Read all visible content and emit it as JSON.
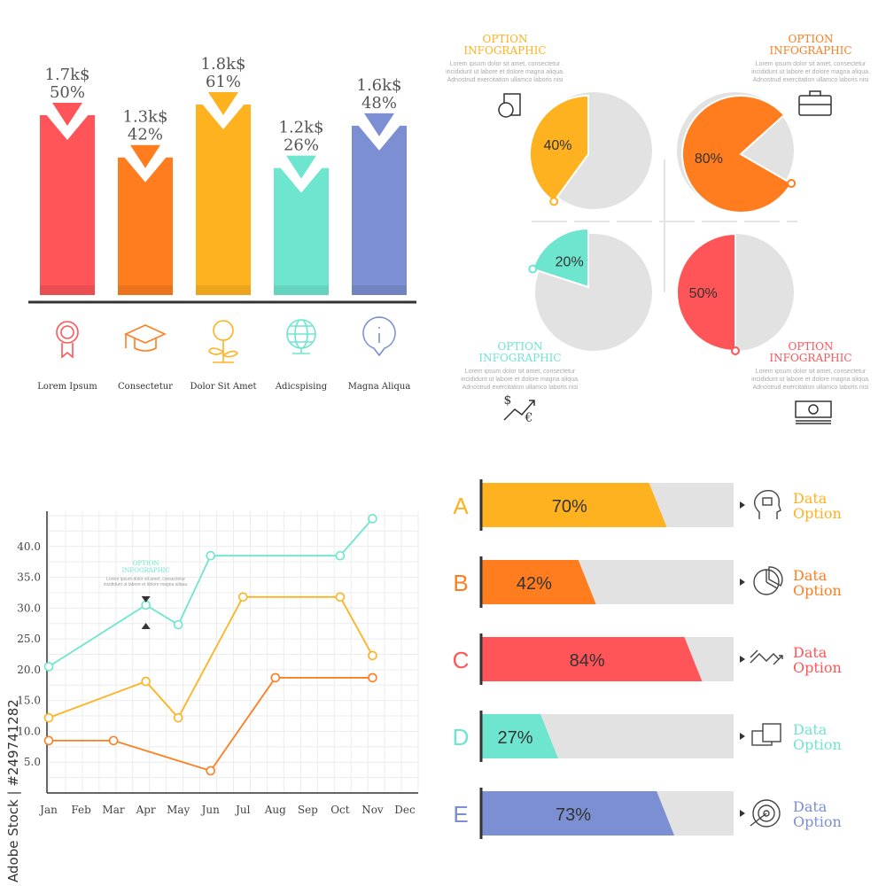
{
  "colors": {
    "red": "#ff5558",
    "orange": "#ff7d1f",
    "yellow": "#ffb21f",
    "teal": "#6ee5cf",
    "blue": "#7b8fd2",
    "grey": "#e2e2e2",
    "text": "#444444"
  },
  "watermark": "Adobe Stock | #249741282",
  "lorem": "Lorem ipsum dolor sit amet, consectetur incididunt ut labore et dolore magna aliqua. Adnostrud exercitation ullamco laboris nisi",
  "chart_data": [
    {
      "type": "bar",
      "categories": [
        "Lorem Ipsum",
        "Consectetur",
        "Dolor Sit Amet",
        "Adicspising",
        "Magna Aliqua"
      ],
      "value_labels": [
        "1.7k$",
        "1.3k$",
        "1.8k$",
        "1.2k$",
        "1.6k$"
      ],
      "percent_labels": [
        "50%",
        "42%",
        "61%",
        "26%",
        "48%"
      ],
      "values": [
        1.7,
        1.3,
        1.8,
        1.2,
        1.6
      ],
      "colors": [
        "#ff5558",
        "#ff7d1f",
        "#ffb21f",
        "#6ee5cf",
        "#7b8fd2"
      ],
      "icons": [
        "award-ribbon-icon",
        "graduation-cap-icon",
        "money-plant-icon",
        "globe-icon",
        "info-pin-icon"
      ]
    },
    {
      "type": "pie",
      "title": "OPTION INFOGRAPHIC",
      "slices": [
        {
          "label": "40%",
          "value": 40,
          "color": "#ffb21f",
          "title": "OPTION INFOGRAPHIC",
          "icon": "report-chart-icon"
        },
        {
          "label": "80%",
          "value": 80,
          "color": "#ff7d1f",
          "title": "OPTION INFOGRAPHIC",
          "icon": "briefcase-icon"
        },
        {
          "label": "20%",
          "value": 20,
          "color": "#6ee5cf",
          "title": "OPTION INFOGRAPHIC",
          "icon": "currency-exchange-icon"
        },
        {
          "label": "50%",
          "value": 50,
          "color": "#ff5558",
          "title": "OPTION INFOGRAPHIC",
          "icon": "banknote-icon"
        }
      ]
    },
    {
      "type": "line",
      "x": [
        "Jan",
        "Feb",
        "Mar",
        "Apr",
        "May",
        "Jun",
        "Jul",
        "Aug",
        "Sep",
        "Oct",
        "Nov",
        "Dec"
      ],
      "yticks": [
        "5.0",
        "10.0",
        "15.0",
        "20.0",
        "25.0",
        "30.0",
        "35.0",
        "40.0"
      ],
      "ylim": [
        0,
        45
      ],
      "annotation": {
        "title": "OPTION INFOGRAPHIC",
        "x": "Apr"
      },
      "grid": true,
      "series": [
        {
          "color": "#6ee5cf",
          "points": [
            [
              "Jan",
              20.5
            ],
            [
              "Apr",
              30.5
            ],
            [
              "May",
              27.3
            ],
            [
              "Jun",
              38.5
            ],
            [
              "Oct",
              38.5
            ],
            [
              "Nov",
              44.5
            ]
          ]
        },
        {
          "color": "#ffb21f",
          "points": [
            [
              "Jan",
              12.2
            ],
            [
              "Apr",
              18.1
            ],
            [
              "May",
              12.2
            ],
            [
              "Jul",
              31.8
            ],
            [
              "Oct",
              31.8
            ],
            [
              "Nov",
              22.3
            ]
          ]
        },
        {
          "color": "#ff7d1f",
          "points": [
            [
              "Jan",
              8.5
            ],
            [
              "Mar",
              8.5
            ],
            [
              "Jun",
              3.6
            ],
            [
              "Aug",
              18.7
            ],
            [
              "Nov",
              18.7
            ]
          ]
        }
      ]
    },
    {
      "type": "bar",
      "orientation": "horizontal",
      "categories": [
        "A",
        "B",
        "C",
        "D",
        "E"
      ],
      "values": [
        70,
        42,
        84,
        27,
        73
      ],
      "labels": [
        "70%",
        "42%",
        "84%",
        "27%",
        "73%"
      ],
      "colors": [
        "#ffb21f",
        "#ff7d1f",
        "#ff5558",
        "#6ee5cf",
        "#7b8fd2"
      ],
      "option_label": [
        "Data",
        "Option"
      ],
      "icons": [
        "head-idea-icon",
        "pie-chart-icon",
        "trend-arrows-icon",
        "documents-icon",
        "target-icon"
      ]
    }
  ]
}
